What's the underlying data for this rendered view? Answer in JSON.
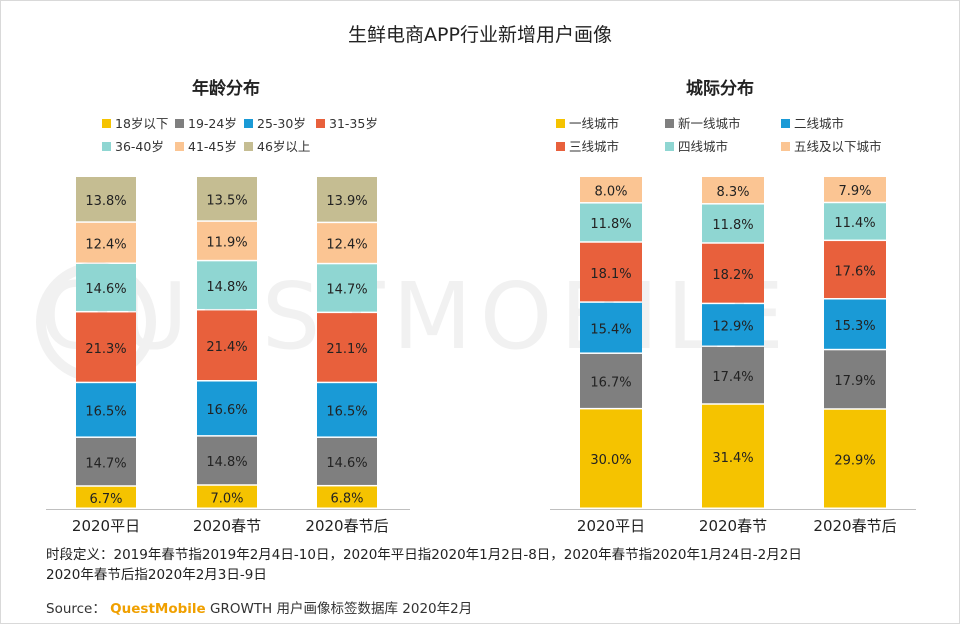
{
  "title": "生鲜电商APP行业新增用户画像",
  "watermark": "QUESTMOBILE",
  "chart_data": [
    {
      "type": "bar",
      "stacked": true,
      "title": "年龄分布",
      "categories": [
        "2020平日",
        "2020春节",
        "2020春节后"
      ],
      "series": [
        {
          "name": "18岁以下",
          "color": "#f5c300",
          "values": [
            6.7,
            7.0,
            6.8
          ],
          "labels": [
            "6.7%",
            "7.0%",
            "6.8%"
          ]
        },
        {
          "name": "19-24岁",
          "color": "#7f7f7f",
          "values": [
            14.7,
            14.8,
            14.6
          ],
          "labels": [
            "14.7%",
            "14.8%",
            "14.6%"
          ]
        },
        {
          "name": "25-30岁",
          "color": "#1a9ad6",
          "values": [
            16.5,
            16.6,
            16.5
          ],
          "labels": [
            "16.5%",
            "16.6%",
            "16.5%"
          ]
        },
        {
          "name": "31-35岁",
          "color": "#e8603c",
          "values": [
            21.3,
            21.4,
            21.1
          ],
          "labels": [
            "21.3%",
            "21.4%",
            "21.1%"
          ]
        },
        {
          "name": "36-40岁",
          "color": "#8fd6d2",
          "values": [
            14.6,
            14.8,
            14.7
          ],
          "labels": [
            "14.6%",
            "14.8%",
            "14.7%"
          ]
        },
        {
          "name": "41-45岁",
          "color": "#fbc593",
          "values": [
            12.4,
            11.9,
            12.4
          ],
          "labels": [
            "12.4%",
            "11.9%",
            "12.4%"
          ]
        },
        {
          "name": "46岁以上",
          "color": "#c5bd92",
          "values": [
            13.8,
            13.5,
            13.9
          ],
          "labels": [
            "13.8%",
            "13.5%",
            "13.9%"
          ]
        }
      ],
      "legend_rows": [
        [
          0,
          1,
          2,
          3
        ],
        [
          4,
          5,
          6
        ]
      ],
      "ylim": [
        0,
        100
      ]
    },
    {
      "type": "bar",
      "stacked": true,
      "title": "城际分布",
      "categories": [
        "2020平日",
        "2020春节",
        "2020春节后"
      ],
      "series": [
        {
          "name": "一线城市",
          "color": "#f5c300",
          "values": [
            30.0,
            31.4,
            29.9
          ],
          "labels": [
            "30.0%",
            "31.4%",
            "29.9%"
          ]
        },
        {
          "name": "新一线城市",
          "color": "#7f7f7f",
          "values": [
            16.7,
            17.4,
            17.9
          ],
          "labels": [
            "16.7%",
            "17.4%",
            "17.9%"
          ]
        },
        {
          "name": "二线城市",
          "color": "#1a9ad6",
          "values": [
            15.4,
            12.9,
            15.3
          ],
          "labels": [
            "15.4%",
            "12.9%",
            "15.3%"
          ]
        },
        {
          "name": "三线城市",
          "color": "#e8603c",
          "values": [
            18.1,
            18.2,
            17.6
          ],
          "labels": [
            "18.1%",
            "18.2%",
            "17.6%"
          ]
        },
        {
          "name": "四线城市",
          "color": "#8fd6d2",
          "values": [
            11.8,
            11.8,
            11.4
          ],
          "labels": [
            "11.8%",
            "11.8%",
            "11.4%"
          ]
        },
        {
          "name": "五线及以下城市",
          "color": "#fbc593",
          "values": [
            8.0,
            8.3,
            7.9
          ],
          "labels": [
            "8.0%",
            "8.3%",
            "7.9%"
          ]
        }
      ],
      "legend_rows": [
        [
          0,
          1,
          2
        ],
        [
          3,
          4,
          5
        ]
      ],
      "ylim": [
        0,
        100
      ]
    }
  ],
  "notes": {
    "line1": "时段定义：2019年春节指2019年2月4日-10日，2020年平日指2020年1月2日-8日，2020年春节指2020年1月24日-2月2日",
    "line2": "2020年春节后指2020年2月3日-9日"
  },
  "source": {
    "label": "Source：",
    "brand": "QuestMobile",
    "text": " GROWTH 用户画像标签数据库 2020年2月"
  }
}
